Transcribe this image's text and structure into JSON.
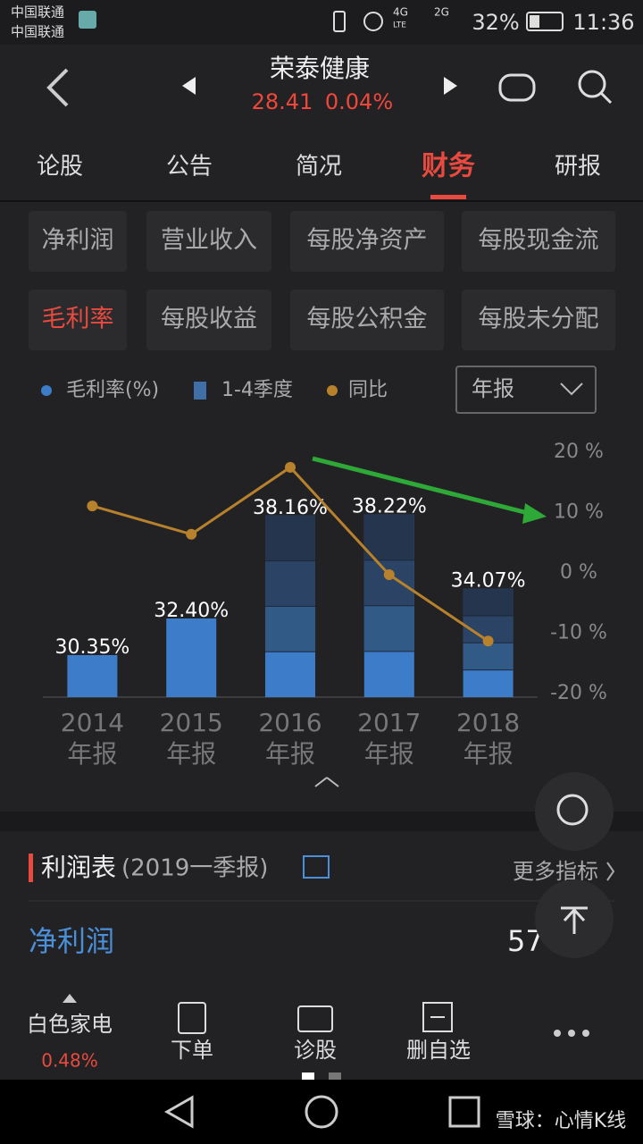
{
  "status_bar": {
    "carrier_1": "中国联通",
    "carrier_2": "中国联通",
    "network_1": "4G",
    "network_1_sub": "LTE",
    "network_2": "2G",
    "battery": "32%",
    "time": "11:36"
  },
  "header": {
    "title": "荣泰健康",
    "price": "28.41",
    "change": "0.04%"
  },
  "tabs": {
    "items": [
      "论股",
      "公告",
      "简况",
      "财务",
      "研报"
    ],
    "active": 3
  },
  "metric_buttons": {
    "items": [
      "净利润",
      "营业收入",
      "每股净资产",
      "每股现金流",
      "毛利率",
      "每股收益",
      "每股公积金",
      "每股未分配"
    ],
    "active": 4
  },
  "period_select": "年报",
  "chart_data": {
    "type": "bar",
    "categories": [
      "2014",
      "2015",
      "2016",
      "2017",
      "2018"
    ],
    "category_suffix": "年报",
    "quarter_legend": "1-4季度",
    "quarter_legend_color": "#3f6fa6",
    "quarter_split": [
      false,
      false,
      true,
      true,
      true
    ],
    "series": [
      {
        "name": "毛利率(%)",
        "color": "#3d7cc9",
        "values": [
          30.35,
          32.4,
          38.16,
          38.22,
          34.07
        ],
        "value_labels": [
          "30.35%",
          "32.40%",
          "38.16%",
          "38.22%",
          "34.07%"
        ]
      },
      {
        "name": "同比",
        "type": "line",
        "color": "#b8812c",
        "axis": "y2",
        "values": [
          11.1,
          6.4,
          17.5,
          -0.3,
          -11.3
        ]
      }
    ],
    "ylim": [
      28,
      38.5
    ],
    "y2lim": [
      -20,
      20
    ],
    "y2ticks": [
      {
        "value": 20,
        "label": "20 %"
      },
      {
        "value": 10,
        "label": "10 %"
      },
      {
        "value": 0,
        "label": "0 %"
      },
      {
        "value": -10,
        "label": "-10 %"
      },
      {
        "value": -20,
        "label": "-20 %"
      }
    ]
  },
  "section": {
    "title": "利润表",
    "subtitle": "(2019一季报)",
    "more": "更多指标"
  },
  "row": {
    "label": "净利润",
    "value": "57"
  },
  "bottom_bar": {
    "index_name": "白色家电",
    "index_change": "0.48%",
    "actions": [
      "下单",
      "诊股",
      "删自选"
    ]
  },
  "watermark": "雪球：心情K线"
}
